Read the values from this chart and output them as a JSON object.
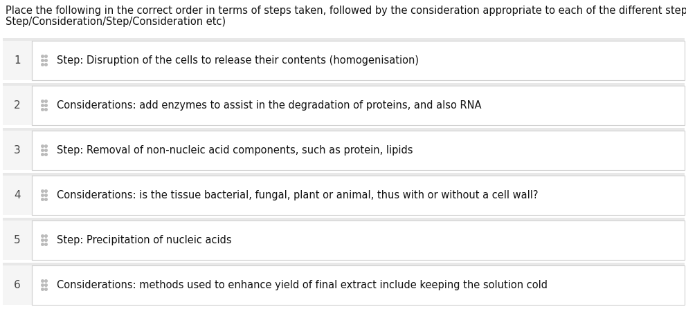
{
  "title_line1": "Place the following in the correct order in terms of steps taken, followed by the consideration appropriate to each of the different steps (so",
  "title_line2": "Step/Consideration/Step/Consideration etc)",
  "title_fontsize": 10.5,
  "title_color": "#111111",
  "page_background": "#ffffff",
  "row_background": "#ffffff",
  "row_gap_color": "#e8e8e8",
  "card_background": "#ffffff",
  "card_border_color": "#d0d0d0",
  "number_area_bg": "#f5f5f5",
  "number_color": "#444444",
  "text_color": "#111111",
  "dot_color": "#bbbbbb",
  "items": [
    {
      "number": "1",
      "text": "Step: Disruption of the cells to release their contents (homogenisation)"
    },
    {
      "number": "2",
      "text": "Considerations: add enzymes to assist in the degradation of proteins, and also RNA"
    },
    {
      "number": "3",
      "text": "Step: Removal of non-nucleic acid components, such as protein, lipids"
    },
    {
      "number": "4",
      "text": "Considerations: is the tissue bacterial, fungal, plant or animal, thus with or without a cell wall?"
    },
    {
      "number": "5",
      "text": "Step: Precipitation of nucleic acids"
    },
    {
      "number": "6",
      "text": "Considerations: methods used to enhance yield of final extract include keeping the solution cold"
    }
  ],
  "item_fontsize": 10.5,
  "number_fontsize": 11,
  "fig_width": 9.91,
  "fig_height": 4.47,
  "dpi": 100
}
